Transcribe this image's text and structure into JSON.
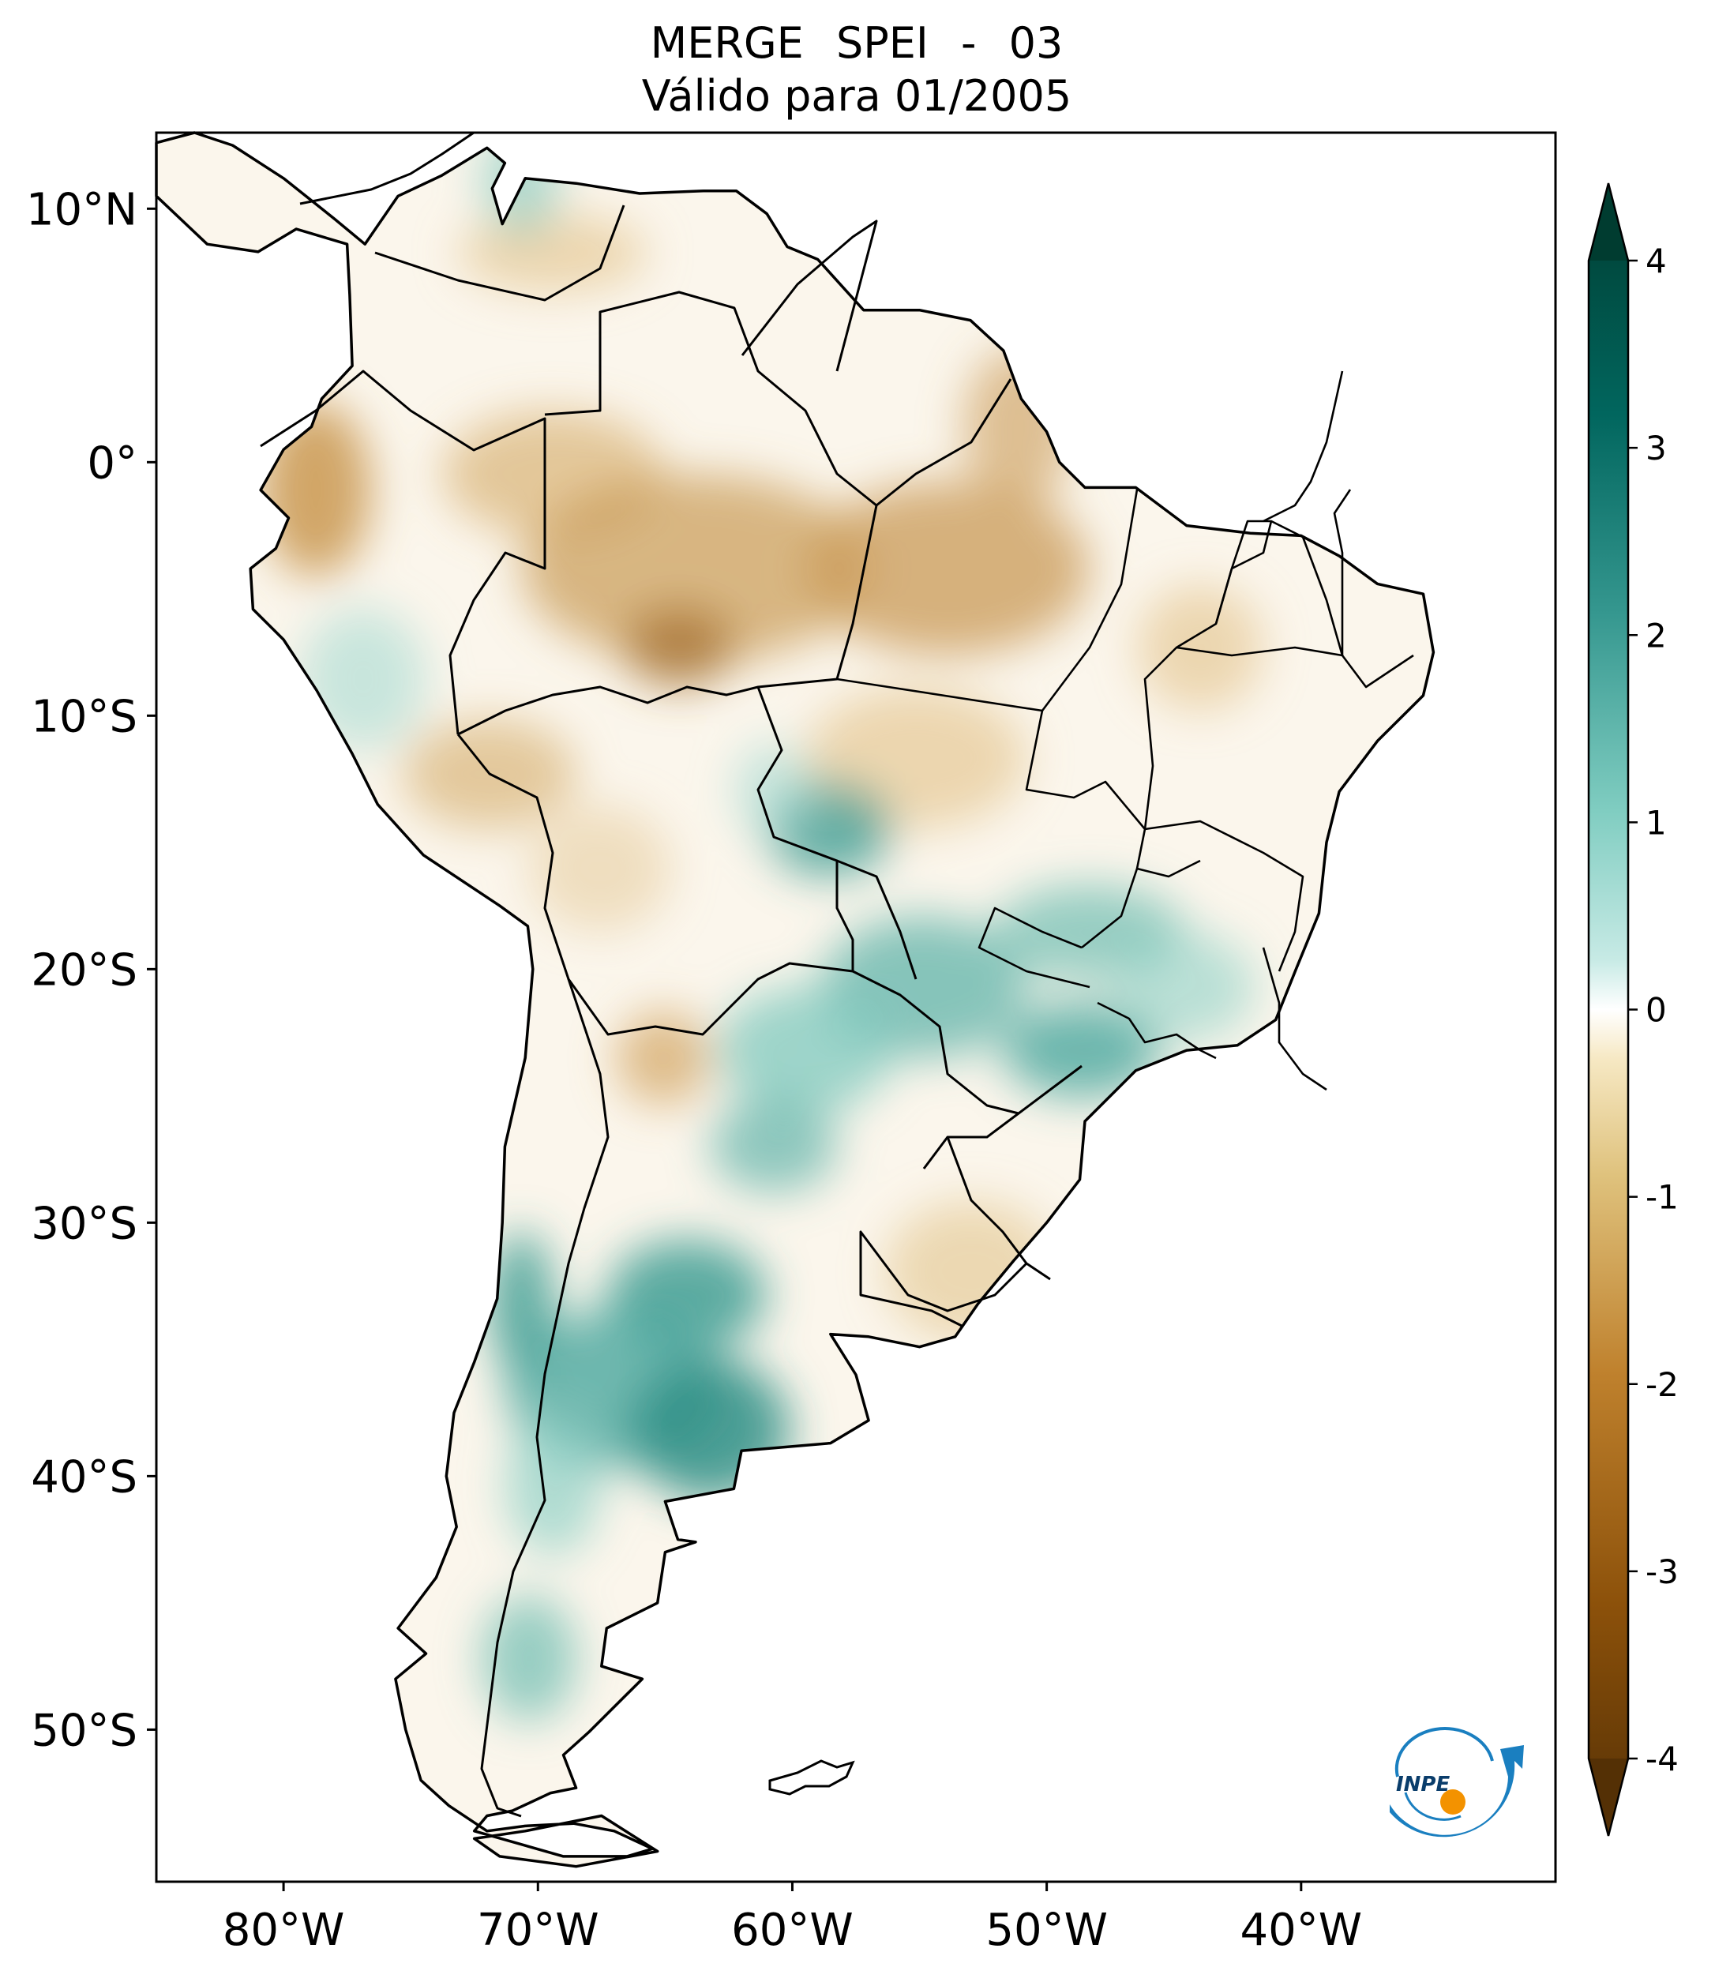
{
  "title": {
    "line1": "MERGE   SPEI - 03",
    "line2": "Válido para 01/2005"
  },
  "map": {
    "lat_ticks": [
      "10°N",
      "0°",
      "10°S",
      "20°S",
      "30°S",
      "40°S",
      "50°S"
    ],
    "lon_ticks": [
      "80°W",
      "70°W",
      "60°W",
      "50°W",
      "40°W"
    ],
    "lon_range_deg": [
      -85,
      -30
    ],
    "lat_range_deg": [
      -56,
      13
    ]
  },
  "colorbar": {
    "ticks": [
      "4",
      "3",
      "2",
      "1",
      "0",
      "-1",
      "-2",
      "-3",
      "-4"
    ],
    "range": [
      -4,
      4
    ],
    "colors": {
      "dry_strong": "#543005",
      "dry": "#bf812d",
      "dry_light": "#f6e8c3",
      "neutral": "#ffffff",
      "wet_light": "#c7eae5",
      "wet": "#35978f",
      "wet_strong": "#003c30"
    }
  },
  "logo": {
    "text": "INPE"
  }
}
